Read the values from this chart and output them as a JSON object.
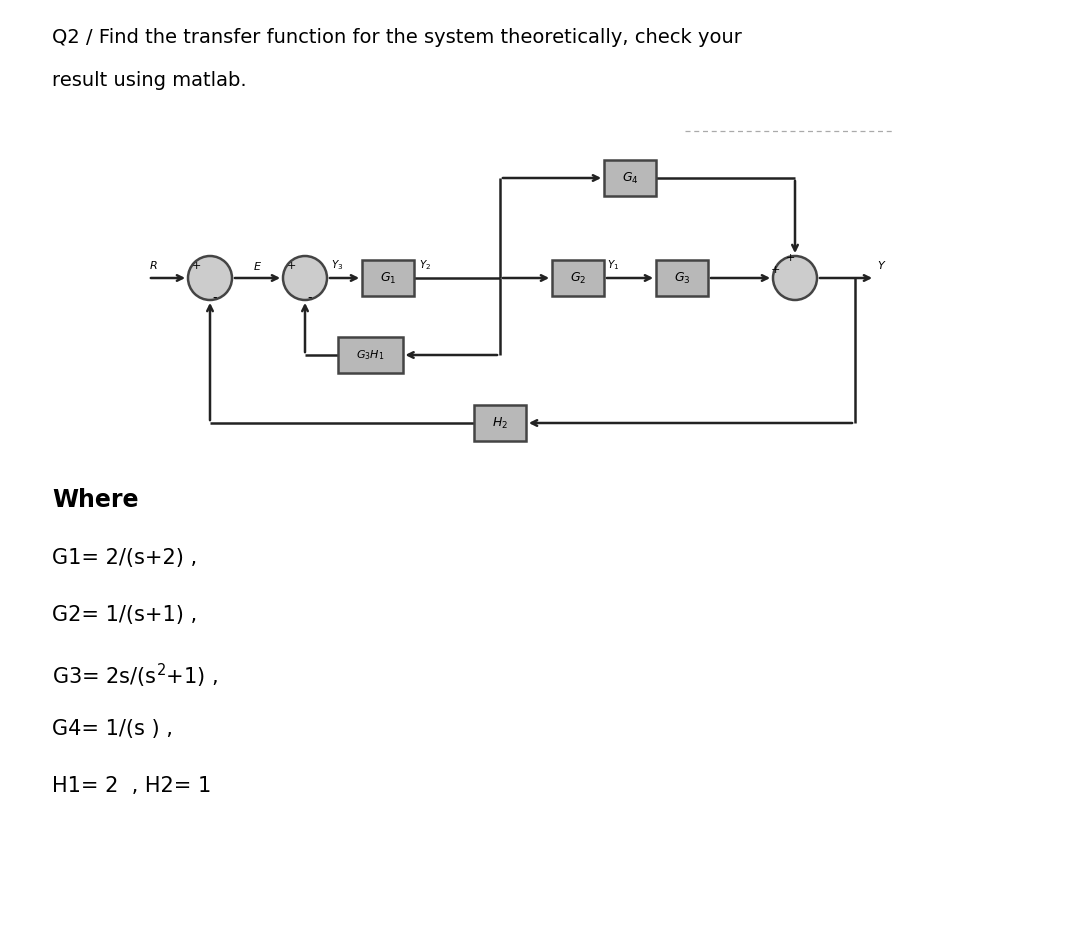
{
  "title_line1": "Q2 / Find the transfer function for the system theoretically, check your",
  "title_line2": "result using matlab.",
  "bg_color": "#ffffff",
  "text_color": "#000000",
  "block_face_color": "#b8b8b8",
  "block_edge_color": "#444444",
  "line_color": "#222222",
  "circle_face_color": "#cccccc",
  "circle_edge_color": "#444444",
  "where_text": "Where",
  "eq1": "G1= 2/(s+2) ,",
  "eq2": "G2= 1/(s+1) ,",
  "eq4": "G4= 1/(s ) ,",
  "eq5": "H1= 2  , H2= 1",
  "title_fontsize": 14,
  "eq_fontsize": 15,
  "where_fontsize": 17
}
